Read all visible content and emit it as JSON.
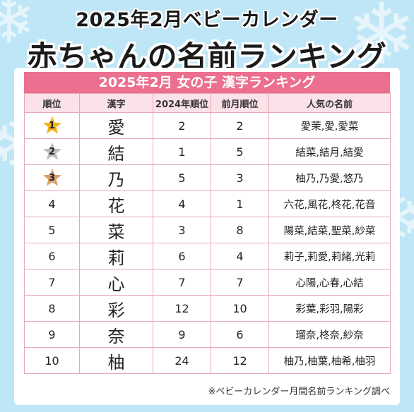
{
  "header": {
    "subtitle": "2025年2月ベビーカレンダー",
    "title": "赤ちゃんの名前ランキング"
  },
  "table": {
    "title": "2025年2月 女の子 漢字ランキング",
    "columns": [
      "順位",
      "漢字",
      "2024年順位",
      "前月順位",
      "人気の名前"
    ],
    "rows": [
      {
        "rank": "1",
        "kanji": "愛",
        "rank2024": "2",
        "prev": "2",
        "names": "愛茉,愛,愛菜",
        "medal": "gold"
      },
      {
        "rank": "2",
        "kanji": "結",
        "rank2024": "1",
        "prev": "5",
        "names": "結菜,結月,結愛",
        "medal": "silver"
      },
      {
        "rank": "3",
        "kanji": "乃",
        "rank2024": "5",
        "prev": "3",
        "names": "柚乃,乃愛,悠乃",
        "medal": "bronze"
      },
      {
        "rank": "4",
        "kanji": "花",
        "rank2024": "4",
        "prev": "1",
        "names": "六花,風花,柊花,花音"
      },
      {
        "rank": "5",
        "kanji": "菜",
        "rank2024": "3",
        "prev": "8",
        "names": "陽菜,結菜,聖菜,紗菜"
      },
      {
        "rank": "6",
        "kanji": "莉",
        "rank2024": "6",
        "prev": "4",
        "names": "莉子,莉愛,莉緒,光莉"
      },
      {
        "rank": "7",
        "kanji": "心",
        "rank2024": "7",
        "prev": "7",
        "names": "心陽,心春,心結"
      },
      {
        "rank": "8",
        "kanji": "彩",
        "rank2024": "12",
        "prev": "10",
        "names": "彩葉,彩羽,陽彩"
      },
      {
        "rank": "9",
        "kanji": "奈",
        "rank2024": "9",
        "prev": "6",
        "names": "瑠奈,柊奈,紗奈"
      },
      {
        "rank": "10",
        "kanji": "柚",
        "rank2024": "24",
        "prev": "12",
        "names": "柚乃,柚葉,柚希,柚羽"
      }
    ]
  },
  "footnote": "※ベビーカレンダー月間名前ランキング調べ",
  "colors": {
    "background": "#bfe6f6",
    "title_bar": "#ec6f8f",
    "header_row": "#fbe1e8",
    "gold": "#f5b21a",
    "silver": "#bdbdbd",
    "bronze": "#d9a06b"
  }
}
